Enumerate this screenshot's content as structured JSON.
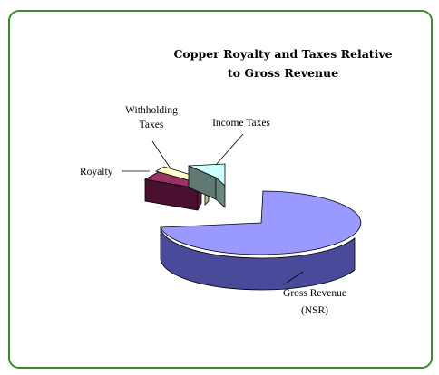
{
  "chart_data": {
    "type": "pie",
    "title_lines": [
      "Copper Royalty and Taxes Relative",
      "to Gross Revenue"
    ],
    "slices": [
      {
        "name": "Gross Revenue (NSR)",
        "label_lines": [
          "Gross Revenue",
          "(NSR)"
        ],
        "value": 82,
        "color": "#9999ff"
      },
      {
        "name": "Royalty",
        "label_lines": [
          "Royalty"
        ],
        "value": 5,
        "color": "#993366"
      },
      {
        "name": "Withholding Taxes",
        "label_lines": [
          "Withholding",
          "Taxes"
        ],
        "value": 2,
        "color": "#ffffcc"
      },
      {
        "name": "Income Taxes",
        "label_lines": [
          "Income Taxes"
        ],
        "value": 11,
        "color": "#ccffff"
      }
    ],
    "three_d": true,
    "exploded": [
      "Royalty",
      "Withholding Taxes",
      "Income Taxes"
    ],
    "legend": "none"
  }
}
